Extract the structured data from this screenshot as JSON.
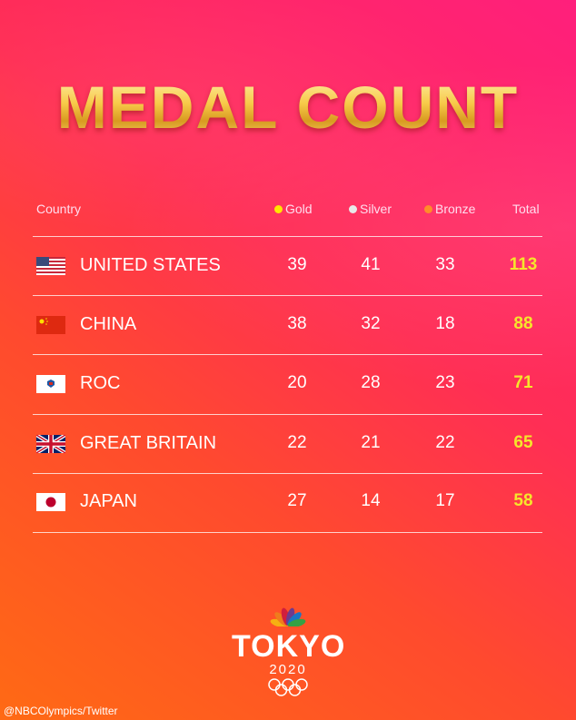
{
  "title": "MEDAL COUNT",
  "header": {
    "country": "Country",
    "gold": "Gold",
    "silver": "Silver",
    "bronze": "Bronze",
    "total": "Total"
  },
  "colors": {
    "gold": "#ffe600",
    "silver": "#e8e8e8",
    "bronze": "#ff8c2a",
    "total": "#f5e62b"
  },
  "rows": [
    {
      "flag": "us-flag",
      "country": "UNITED STATES",
      "gold": "39",
      "silver": "41",
      "bronze": "33",
      "total": "113"
    },
    {
      "flag": "china-flag",
      "country": "CHINA",
      "gold": "38",
      "silver": "32",
      "bronze": "18",
      "total": "88"
    },
    {
      "flag": "roc-flag",
      "country": "ROC",
      "gold": "20",
      "silver": "28",
      "bronze": "23",
      "total": "71"
    },
    {
      "flag": "uk-flag",
      "country": "GREAT BRITAIN",
      "gold": "22",
      "silver": "21",
      "bronze": "22",
      "total": "65"
    },
    {
      "flag": "japan-flag",
      "country": "JAPAN",
      "gold": "27",
      "silver": "14",
      "bronze": "17",
      "total": "58"
    }
  ],
  "logo": {
    "word": "TOKYO",
    "year": "2020"
  },
  "credit": "@NBCOlympics/Twitter"
}
